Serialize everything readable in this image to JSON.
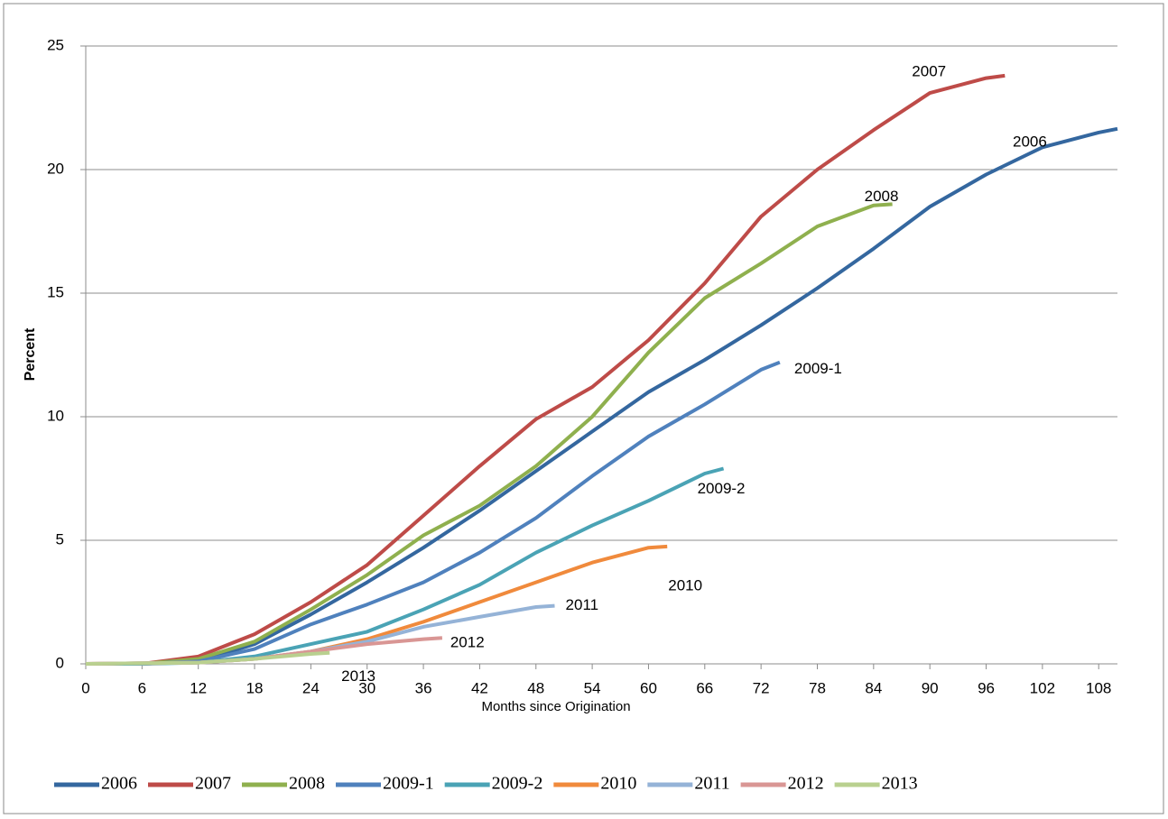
{
  "chart_data": {
    "type": "line",
    "x_label": "Months since Origination",
    "y_label": "Percent",
    "xlim": [
      0,
      110
    ],
    "ylim": [
      0,
      25
    ],
    "xticks": [
      0,
      6,
      12,
      18,
      24,
      30,
      36,
      42,
      48,
      54,
      60,
      66,
      72,
      78,
      84,
      90,
      96,
      102,
      108
    ],
    "yticks": [
      0,
      5,
      10,
      15,
      20,
      25
    ],
    "grid": true,
    "legend": "bottom",
    "series": [
      {
        "name": "2006",
        "color": "#34679f",
        "x": [
          0,
          6,
          12,
          18,
          24,
          30,
          36,
          42,
          48,
          54,
          60,
          66,
          72,
          78,
          84,
          90,
          96,
          102,
          108,
          110
        ],
        "values": [
          0,
          0,
          0.1,
          0.8,
          2.0,
          3.3,
          4.7,
          6.2,
          7.8,
          9.4,
          11.0,
          12.3,
          13.7,
          15.2,
          16.8,
          18.5,
          19.8,
          20.9,
          21.5,
          21.65
        ]
      },
      {
        "name": "2007",
        "color": "#be4b48",
        "x": [
          0,
          6,
          12,
          18,
          24,
          30,
          36,
          42,
          48,
          54,
          60,
          66,
          72,
          78,
          84,
          90,
          96,
          98
        ],
        "values": [
          0,
          0,
          0.3,
          1.2,
          2.5,
          4.0,
          6.0,
          8.0,
          9.9,
          11.2,
          13.1,
          15.4,
          18.1,
          20.0,
          21.6,
          23.1,
          23.7,
          23.8
        ]
      },
      {
        "name": "2008",
        "color": "#8fb04e",
        "x": [
          0,
          6,
          12,
          18,
          24,
          30,
          36,
          42,
          48,
          54,
          60,
          66,
          72,
          78,
          84,
          86
        ],
        "values": [
          0,
          0,
          0.2,
          0.9,
          2.2,
          3.6,
          5.2,
          6.4,
          8.0,
          10.0,
          12.6,
          14.8,
          16.2,
          17.7,
          18.55,
          18.6
        ]
      },
      {
        "name": "2009-1",
        "color": "#4f81bd",
        "x": [
          0,
          6,
          12,
          18,
          24,
          30,
          36,
          42,
          48,
          54,
          60,
          66,
          72,
          74
        ],
        "values": [
          0,
          0,
          0.1,
          0.6,
          1.6,
          2.4,
          3.3,
          4.5,
          5.9,
          7.6,
          9.2,
          10.5,
          11.9,
          12.2
        ]
      },
      {
        "name": "2009-2",
        "color": "#4aa3b5",
        "x": [
          0,
          6,
          12,
          18,
          24,
          30,
          36,
          42,
          48,
          54,
          60,
          66,
          68
        ],
        "values": [
          0,
          0,
          0.05,
          0.3,
          0.8,
          1.3,
          2.2,
          3.2,
          4.5,
          5.6,
          6.6,
          7.7,
          7.9
        ]
      },
      {
        "name": "2010",
        "color": "#f08a3c",
        "x": [
          0,
          12,
          18,
          24,
          30,
          36,
          42,
          48,
          54,
          60,
          62
        ],
        "values": [
          0,
          0.05,
          0.2,
          0.5,
          1.0,
          1.7,
          2.5,
          3.3,
          4.1,
          4.7,
          4.75
        ]
      },
      {
        "name": "2011",
        "color": "#95b3d7",
        "x": [
          0,
          12,
          18,
          24,
          30,
          36,
          42,
          48,
          50
        ],
        "values": [
          0,
          0.05,
          0.2,
          0.5,
          0.9,
          1.5,
          1.9,
          2.3,
          2.35
        ]
      },
      {
        "name": "2012",
        "color": "#d99694",
        "x": [
          0,
          12,
          18,
          24,
          30,
          36,
          38
        ],
        "values": [
          0,
          0.05,
          0.2,
          0.5,
          0.8,
          1.0,
          1.05
        ]
      },
      {
        "name": "2013",
        "color": "#b9d08f",
        "x": [
          0,
          12,
          18,
          24,
          26
        ],
        "values": [
          0,
          0.05,
          0.2,
          0.4,
          0.45
        ]
      }
    ]
  }
}
